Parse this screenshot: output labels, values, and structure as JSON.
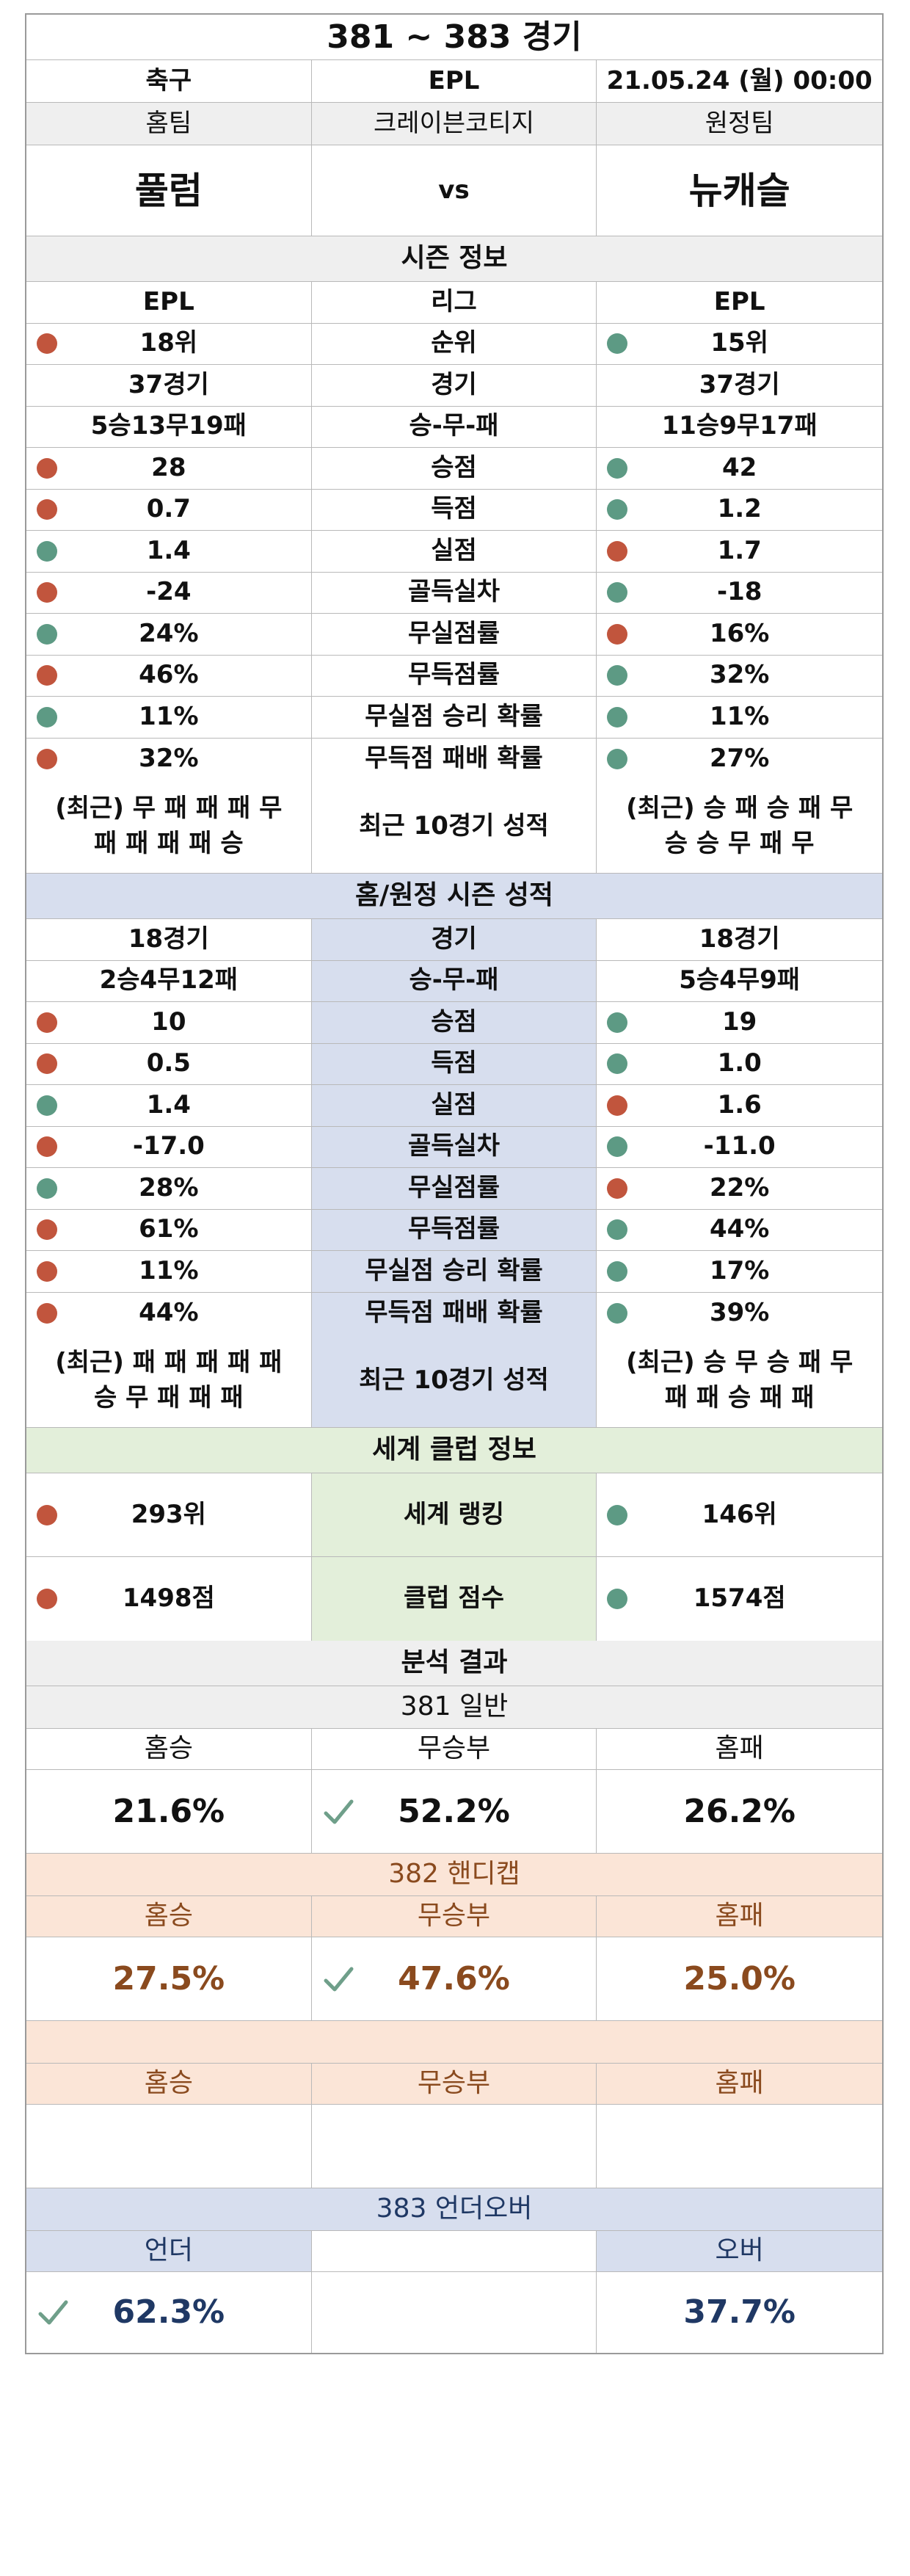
{
  "title": "381 ~ 383 경기",
  "info": {
    "sport": "축구",
    "league": "EPL",
    "datetime": "21.05.24 (월) 00:00"
  },
  "teams": {
    "home_label": "홈팀",
    "stadium": "크레이븐코티지",
    "away_label": "원정팀",
    "home": "풀럼",
    "vs": "vs",
    "away": "뉴캐슬"
  },
  "season": {
    "title": "시즌 정보",
    "rows": [
      {
        "label": "리그",
        "home": "EPL",
        "away": "EPL"
      },
      {
        "label": "순위",
        "home": "18위",
        "away": "15위",
        "home_dot": "red",
        "away_dot": "teal"
      },
      {
        "label": "경기",
        "home": "37경기",
        "away": "37경기"
      },
      {
        "label": "승-무-패",
        "home": "5승13무19패",
        "away": "11승9무17패"
      },
      {
        "label": "승점",
        "home": "28",
        "away": "42",
        "home_dot": "red",
        "away_dot": "teal"
      },
      {
        "label": "득점",
        "home": "0.7",
        "away": "1.2",
        "home_dot": "red",
        "away_dot": "teal"
      },
      {
        "label": "실점",
        "home": "1.4",
        "away": "1.7",
        "home_dot": "teal",
        "away_dot": "red"
      },
      {
        "label": "골득실차",
        "home": "-24",
        "away": "-18",
        "home_dot": "red",
        "away_dot": "teal"
      },
      {
        "label": "무실점률",
        "home": "24%",
        "away": "16%",
        "home_dot": "teal",
        "away_dot": "red"
      },
      {
        "label": "무득점률",
        "home": "46%",
        "away": "32%",
        "home_dot": "red",
        "away_dot": "teal"
      },
      {
        "label": "무실점 승리 확률",
        "home": "11%",
        "away": "11%",
        "home_dot": "teal",
        "away_dot": "teal"
      },
      {
        "label": "무득점 패배 확률",
        "home": "32%",
        "away": "27%",
        "home_dot": "red",
        "away_dot": "teal"
      }
    ],
    "recent": {
      "label": "최근 10경기 성적",
      "home_l1": "(최근) 무 패 패 패 무",
      "home_l2": "패 패 패 패 승",
      "away_l1": "(최근) 승 패 승 패 무",
      "away_l2": "승 승 무 패 무"
    }
  },
  "homeaway": {
    "title": "홈/원정 시즌 성적",
    "rows": [
      {
        "label": "경기",
        "home": "18경기",
        "away": "18경기"
      },
      {
        "label": "승-무-패",
        "home": "2승4무12패",
        "away": "5승4무9패"
      },
      {
        "label": "승점",
        "home": "10",
        "away": "19",
        "home_dot": "red",
        "away_dot": "teal"
      },
      {
        "label": "득점",
        "home": "0.5",
        "away": "1.0",
        "home_dot": "red",
        "away_dot": "teal"
      },
      {
        "label": "실점",
        "home": "1.4",
        "away": "1.6",
        "home_dot": "teal",
        "away_dot": "red"
      },
      {
        "label": "골득실차",
        "home": "-17.0",
        "away": "-11.0",
        "home_dot": "red",
        "away_dot": "teal"
      },
      {
        "label": "무실점률",
        "home": "28%",
        "away": "22%",
        "home_dot": "teal",
        "away_dot": "red"
      },
      {
        "label": "무득점률",
        "home": "61%",
        "away": "44%",
        "home_dot": "red",
        "away_dot": "teal"
      },
      {
        "label": "무실점 승리 확률",
        "home": "11%",
        "away": "17%",
        "home_dot": "red",
        "away_dot": "teal"
      },
      {
        "label": "무득점 패배 확률",
        "home": "44%",
        "away": "39%",
        "home_dot": "red",
        "away_dot": "teal"
      }
    ],
    "recent": {
      "label": "최근 10경기 성적",
      "home_l1": "(최근) 패 패 패 패 패",
      "home_l2": "승 무 패 패 패",
      "away_l1": "(최근) 승 무 승 패 무",
      "away_l2": "패 패 승 패 패"
    }
  },
  "world": {
    "title": "세계 클럽 정보",
    "rows": [
      {
        "label": "세계 랭킹",
        "home": "293위",
        "away": "146위",
        "home_dot": "red",
        "away_dot": "teal"
      },
      {
        "label": "클럽 점수",
        "home": "1498점",
        "away": "1574점",
        "home_dot": "red",
        "away_dot": "teal"
      }
    ]
  },
  "analysis": {
    "title": "분석 결과",
    "general": {
      "title": "381 일반",
      "h1": "홈승",
      "h2": "무승부",
      "h3": "홈패",
      "v1": "21.6%",
      "v2": "52.2%",
      "v3": "26.2%",
      "check": 2
    },
    "handicap": {
      "title": "382 핸디캡",
      "h1": "홈승",
      "h2": "무승부",
      "h3": "홈패",
      "v1": "27.5%",
      "v2": "47.6%",
      "v3": "25.0%",
      "check": 2
    },
    "extra": {
      "title": "",
      "h1": "홈승",
      "h2": "무승부",
      "h3": "홈패",
      "v1": "",
      "v2": "",
      "v3": ""
    },
    "uo": {
      "title": "383 언더오버",
      "h1": "언더",
      "h2": "",
      "h3": "오버",
      "v1": "62.3%",
      "v2": "",
      "v3": "37.7%",
      "check": 1
    }
  },
  "colors": {
    "red_dot": "#c1553d",
    "teal_dot": "#5d9a84",
    "check": "#6f9f8a",
    "brown_text": "#8a4a1e",
    "navy_text": "#1f3864"
  },
  "icons": {
    "dot": "status-circle",
    "check": "check-mark-icon"
  }
}
